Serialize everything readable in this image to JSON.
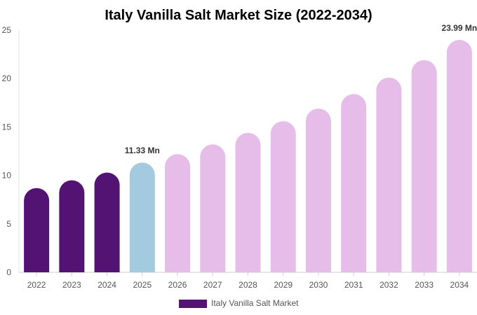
{
  "chart_data": {
    "type": "bar",
    "title": "Italy Vanilla Salt Market Size (2022-2034)",
    "xlabel": "",
    "ylabel": "",
    "categories": [
      "2022",
      "2023",
      "2024",
      "2025",
      "2026",
      "2027",
      "2028",
      "2029",
      "2030",
      "2031",
      "2032",
      "2033",
      "2034"
    ],
    "series": [
      {
        "name": "Italy Vanilla Salt Market",
        "values": [
          8.7,
          9.5,
          10.3,
          11.33,
          12.2,
          13.2,
          14.4,
          15.6,
          16.9,
          18.4,
          20.1,
          21.9,
          23.99
        ]
      }
    ],
    "data_labels": [
      {
        "index": 3,
        "text": "11.33 Mn"
      },
      {
        "index": 12,
        "text": "23.99 Mn"
      }
    ],
    "ylim": [
      0,
      25
    ],
    "yticks": [
      0,
      5,
      10,
      15,
      20,
      25
    ],
    "grid": false,
    "legend_position": "bottom-center",
    "colors": {
      "historical": "#521373",
      "current": "#a3cade",
      "forecast": "#e5bde8",
      "legend_swatch": "#521373"
    },
    "bar_color_groups": [
      "historical",
      "historical",
      "historical",
      "current",
      "forecast",
      "forecast",
      "forecast",
      "forecast",
      "forecast",
      "forecast",
      "forecast",
      "forecast",
      "forecast"
    ]
  }
}
